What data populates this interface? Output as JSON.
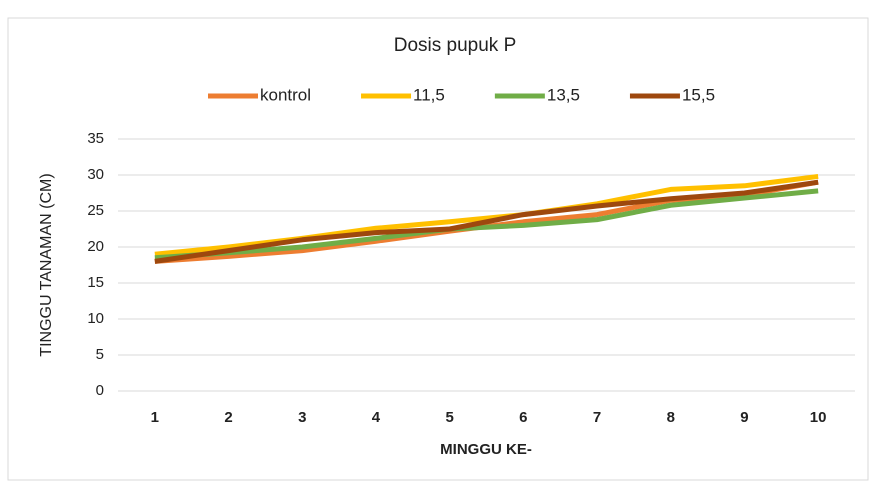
{
  "chart_data": {
    "type": "line",
    "title": "Dosis pupuk P",
    "x_label": "MINGGU KE-",
    "y_label": "TINGGU TANAMAN (CM)",
    "categories": [
      "1",
      "2",
      "3",
      "4",
      "5",
      "6",
      "7",
      "8",
      "9",
      "10"
    ],
    "series": [
      {
        "name": "kontrol",
        "color": "#ed7d31",
        "values": [
          18,
          18.7,
          19.5,
          20.8,
          22.2,
          23.5,
          24.5,
          26.5,
          27.2,
          29
        ]
      },
      {
        "name": "11,5",
        "color": "#ffc000",
        "values": [
          19,
          20,
          21.2,
          22.6,
          23.5,
          24.5,
          26,
          28,
          28.5,
          29.8
        ]
      },
      {
        "name": "13,5",
        "color": "#70ad47",
        "values": [
          18.5,
          19.2,
          20,
          21.2,
          22.5,
          23,
          23.8,
          25.8,
          26.8,
          27.8
        ]
      },
      {
        "name": "15,5",
        "color": "#9e480e",
        "values": [
          18,
          19.5,
          21,
          22,
          22.5,
          24.5,
          25.7,
          26.7,
          27.5,
          29
        ]
      }
    ],
    "ylim": [
      0,
      35
    ],
    "yticks": [
      0,
      5,
      10,
      15,
      20,
      25,
      30,
      35
    ],
    "grid": true,
    "legend": "top"
  }
}
